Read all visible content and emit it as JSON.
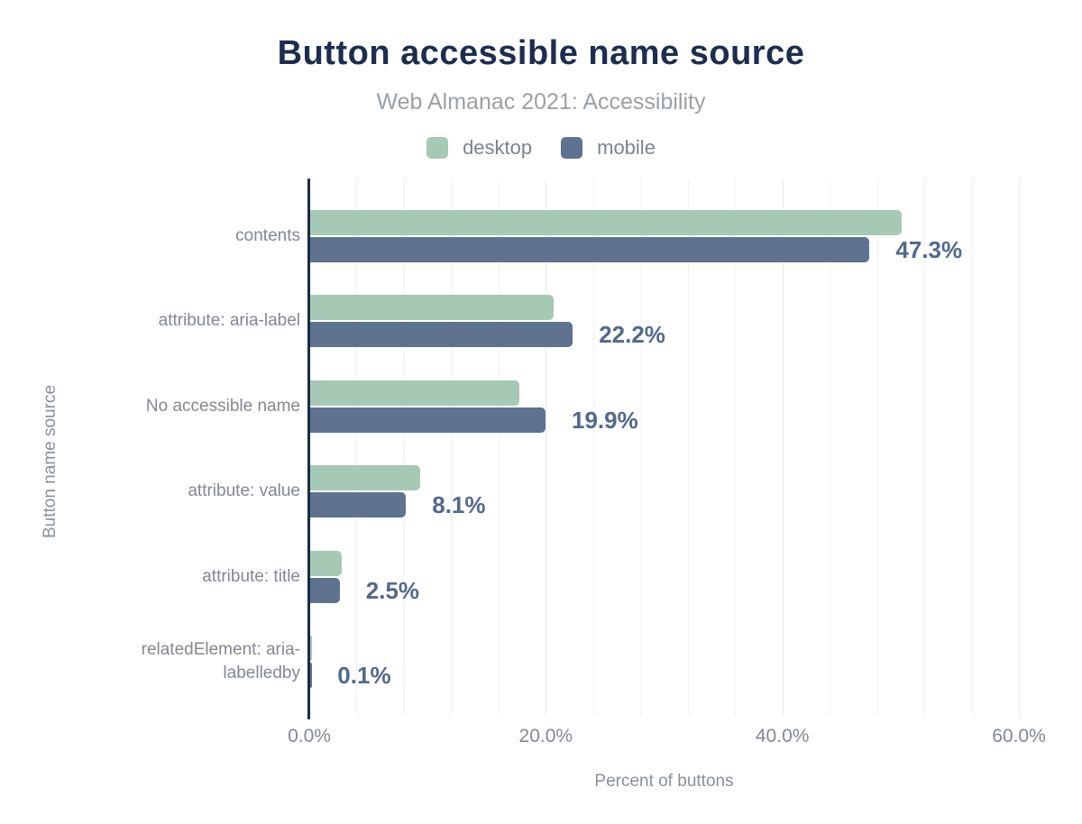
{
  "header": {
    "title": "Button accessible name source",
    "subtitle": "Web Almanac 2021: Accessibility"
  },
  "legend": {
    "items": [
      {
        "label": "desktop",
        "color": "#a6c9b5"
      },
      {
        "label": "mobile",
        "color": "#5e7390"
      }
    ]
  },
  "chart_data": {
    "type": "bar",
    "orientation": "horizontal",
    "title": "Button accessible name source",
    "subtitle": "Web Almanac 2021: Accessibility",
    "xlabel": "Percent of buttons",
    "ylabel": "Button name source",
    "categories": [
      "contents",
      "attribute: aria-label",
      "No accessible name",
      "attribute: value",
      "attribute: title",
      "relatedElement: aria-labelledby"
    ],
    "series": [
      {
        "name": "desktop",
        "color": "#a6c9b5",
        "values": [
          50.0,
          20.6,
          17.7,
          9.3,
          2.7,
          0.1
        ]
      },
      {
        "name": "mobile",
        "color": "#5e7390",
        "values": [
          47.3,
          22.2,
          19.9,
          8.1,
          2.5,
          0.1
        ]
      }
    ],
    "value_labels": [
      "47.3%",
      "22.2%",
      "19.9%",
      "8.1%",
      "2.5%",
      "0.1%"
    ],
    "value_labels_series": "mobile",
    "xticks": [
      {
        "value": 0,
        "label": "0.0%"
      },
      {
        "value": 20,
        "label": "20.0%"
      },
      {
        "value": 40,
        "label": "40.0%"
      },
      {
        "value": 60,
        "label": "60.0%"
      }
    ],
    "xlim": [
      0,
      61.5
    ],
    "minor_grid_step_pct": 4,
    "grid": "vertical-only",
    "legend_position": "top"
  },
  "colors": {
    "title": "#1d2d4f",
    "subtitle": "#9aa0a8",
    "axis_line": "#1b2b45",
    "value_label": "#53688e",
    "tick_label": "#83888f",
    "axis_title": "#8a9096",
    "grid_minor": "#f2f2f5",
    "grid_major": "#e9e9ee",
    "background": "#ffffff"
  }
}
